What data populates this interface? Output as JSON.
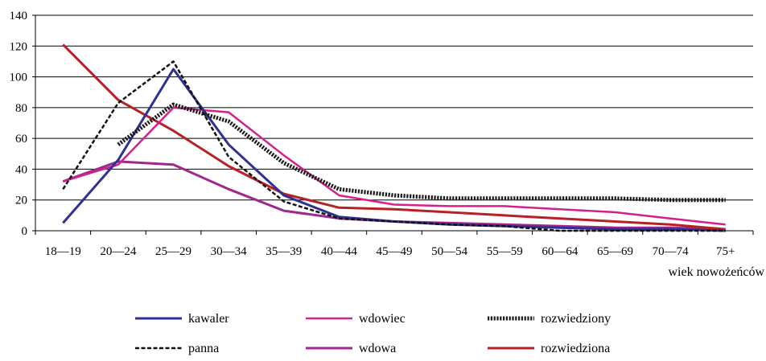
{
  "chart_data": {
    "type": "line",
    "title": "",
    "xlabel": "wiek nowożeńców",
    "ylabel": "",
    "ylim": [
      0,
      140
    ],
    "yticks": [
      0,
      20,
      40,
      60,
      80,
      100,
      120,
      140
    ],
    "grid": true,
    "legend_position": "bottom",
    "categories": [
      "18—19",
      "20—24",
      "25—29",
      "30—34",
      "35—39",
      "40—44",
      "45—49",
      "50—54",
      "55—59",
      "60—64",
      "65—69",
      "70—74",
      "75+"
    ],
    "series": [
      {
        "name": "kawaler",
        "color": "#2e3192",
        "style": "solid",
        "values": [
          5,
          46,
          105,
          56,
          23,
          9,
          6,
          4,
          3,
          2,
          1,
          1,
          0
        ]
      },
      {
        "name": "wdowiec",
        "color": "#d4208c",
        "style": "solid",
        "values": [
          32,
          43,
          80,
          77,
          49,
          23,
          17,
          16,
          16,
          14,
          12,
          8,
          4
        ]
      },
      {
        "name": "rozwiedziony",
        "color": "#1a1a1a",
        "style": "heavy-dotted",
        "values": [
          null,
          56,
          82,
          71,
          44,
          27,
          23,
          21,
          21,
          21,
          21,
          20,
          20
        ]
      },
      {
        "name": "panna",
        "color": "#111111",
        "style": "dashed",
        "values": [
          27,
          83,
          110,
          48,
          19,
          8,
          6,
          4,
          3,
          0,
          0,
          0,
          0
        ]
      },
      {
        "name": "wdowa",
        "color": "#a1278f",
        "style": "solid",
        "values": [
          32,
          45,
          43,
          27,
          13,
          8,
          6,
          5,
          4,
          3,
          2,
          2,
          1
        ]
      },
      {
        "name": "rozwiedziona",
        "color": "#b82025",
        "style": "solid",
        "values": [
          121,
          85,
          65,
          42,
          24,
          15,
          14,
          12,
          10,
          8,
          6,
          4,
          1
        ]
      }
    ]
  }
}
